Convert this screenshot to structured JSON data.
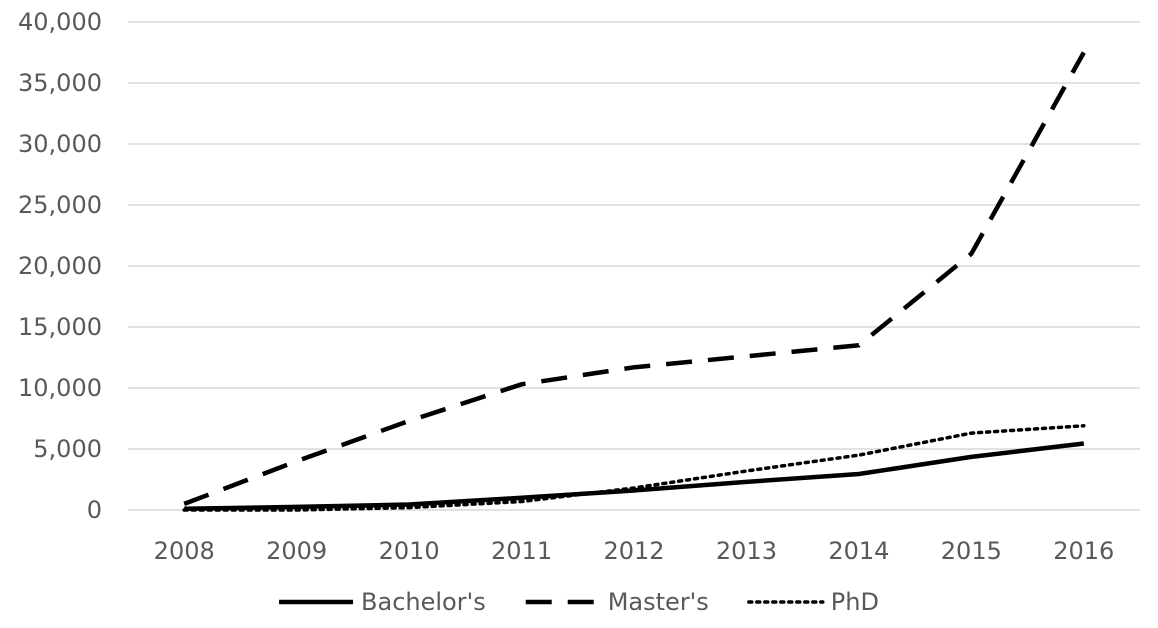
{
  "chart_data": {
    "type": "line",
    "title": "",
    "xlabel": "",
    "ylabel": "",
    "x": [
      "2008",
      "2009",
      "2010",
      "2011",
      "2012",
      "2013",
      "2014",
      "2015",
      "2016"
    ],
    "ylim": [
      0,
      40000
    ],
    "yticks": [
      0,
      5000,
      10000,
      15000,
      20000,
      25000,
      30000,
      35000,
      40000
    ],
    "ytick_labels": [
      "0",
      "5,000",
      "10,000",
      "15,000",
      "20,000",
      "25,000",
      "30,000",
      "35,000",
      "40,000"
    ],
    "grid": "horizontal",
    "legend_position": "bottom",
    "series": [
      {
        "name": "Bachelor's",
        "style": "solid",
        "color": "#000000",
        "values": [
          100,
          250,
          450,
          1000,
          1600,
          2300,
          2950,
          4350,
          5450
        ]
      },
      {
        "name": "Master's",
        "style": "dashed",
        "color": "#000000",
        "values": [
          500,
          4000,
          7300,
          10300,
          11700,
          12600,
          13500,
          21000,
          37500
        ]
      },
      {
        "name": "PhD",
        "style": "dotted",
        "color": "#000000",
        "values": [
          0,
          0,
          200,
          700,
          1800,
          3200,
          4500,
          6300,
          6900
        ]
      }
    ]
  }
}
